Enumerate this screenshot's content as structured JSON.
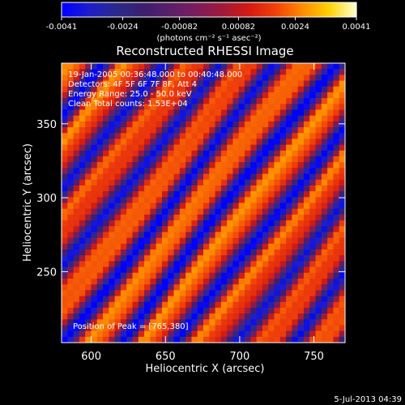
{
  "chart_data": {
    "type": "heatmap",
    "title": "Reconstructed RHESSI Image",
    "xlabel": "Heliocentric X (arcsec)",
    "ylabel": "Heliocentric Y (arcsec)",
    "xlim": [
      580,
      771
    ],
    "ylim": [
      202,
      391
    ],
    "xticks": [
      600,
      650,
      700,
      750
    ],
    "yticks": [
      250,
      300,
      350
    ],
    "colorbar": {
      "min": -0.0041,
      "max": 0.0041,
      "tick_labels": [
        "-0.0041",
        "-0.0024",
        "-0.00082",
        "0.00082",
        "0.0024",
        "0.0041"
      ],
      "tick_values": [
        -0.0041,
        -0.0024,
        -0.00082,
        0.00082,
        0.0024,
        0.0041
      ],
      "unit_label": "(photons cm⁻² s⁻¹ asec⁻²)",
      "colors": [
        "#0000ff",
        "#1e1ecc",
        "#2a2a8c",
        "#3b1f6e",
        "#5a1f6a",
        "#7a1d5e",
        "#a01a3a",
        "#d41a12",
        "#f0400a",
        "#ff8a00",
        "#ffd000",
        "#ffffc8"
      ]
    },
    "annotations": [
      "19-Jan-2005 00:36:48.000 to 00:40:48.000",
      "Detectors: 4F 5F 6F 7F 8F, Att 4",
      "Energy Range: 25.0 - 50.0 keV",
      "Clean    Total counts: 1.53E+04"
    ],
    "peak_label": "Position of Peak = [765,380]",
    "pattern": {
      "description_values": "diagonal fringe pattern; intensity alternates between negative (blue) and positive (yellow/white) bands",
      "fringe_orientation": "diagonal, upper-left to lower-right",
      "nx": 48,
      "ny": 48
    }
  },
  "footer": {
    "timestamp": "5-Jul-2013 04:39"
  }
}
